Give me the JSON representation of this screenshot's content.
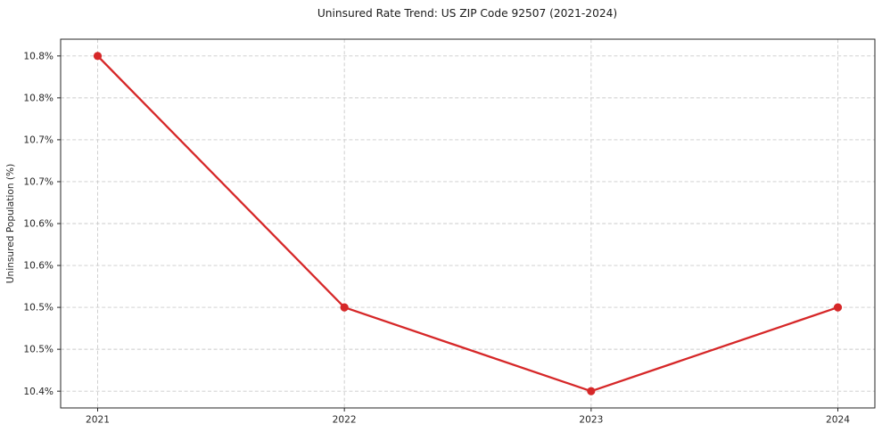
{
  "chart_data": {
    "type": "line",
    "title": "Uninsured Rate Trend: US ZIP Code 92507 (2021-2024)",
    "xlabel": "",
    "ylabel": "Uninsured Population (%)",
    "x": [
      2021,
      2022,
      2023,
      2024
    ],
    "x_tick_labels": [
      "2021",
      "2022",
      "2023",
      "2024"
    ],
    "series": [
      {
        "name": "uninsured-rate",
        "values": [
          10.8,
          10.5,
          10.4,
          10.5
        ]
      }
    ],
    "y_ticks": [
      10.4,
      10.45,
      10.5,
      10.55,
      10.6,
      10.65,
      10.7,
      10.75,
      10.8
    ],
    "y_tick_labels": [
      "10.4%",
      "10.5%",
      "10.5%",
      "10.6%",
      "10.6%",
      "10.7%",
      "10.7%",
      "10.8%",
      "10.8%"
    ],
    "xlim": [
      2020.85,
      2024.15
    ],
    "ylim": [
      10.38,
      10.82
    ],
    "grid": true,
    "legend_position": "none",
    "line_color": "#d62728",
    "marker_color": "#d62728",
    "grid_color": "#cbcbcb",
    "frame_color": "#262626",
    "background_color": "#ffffff"
  }
}
